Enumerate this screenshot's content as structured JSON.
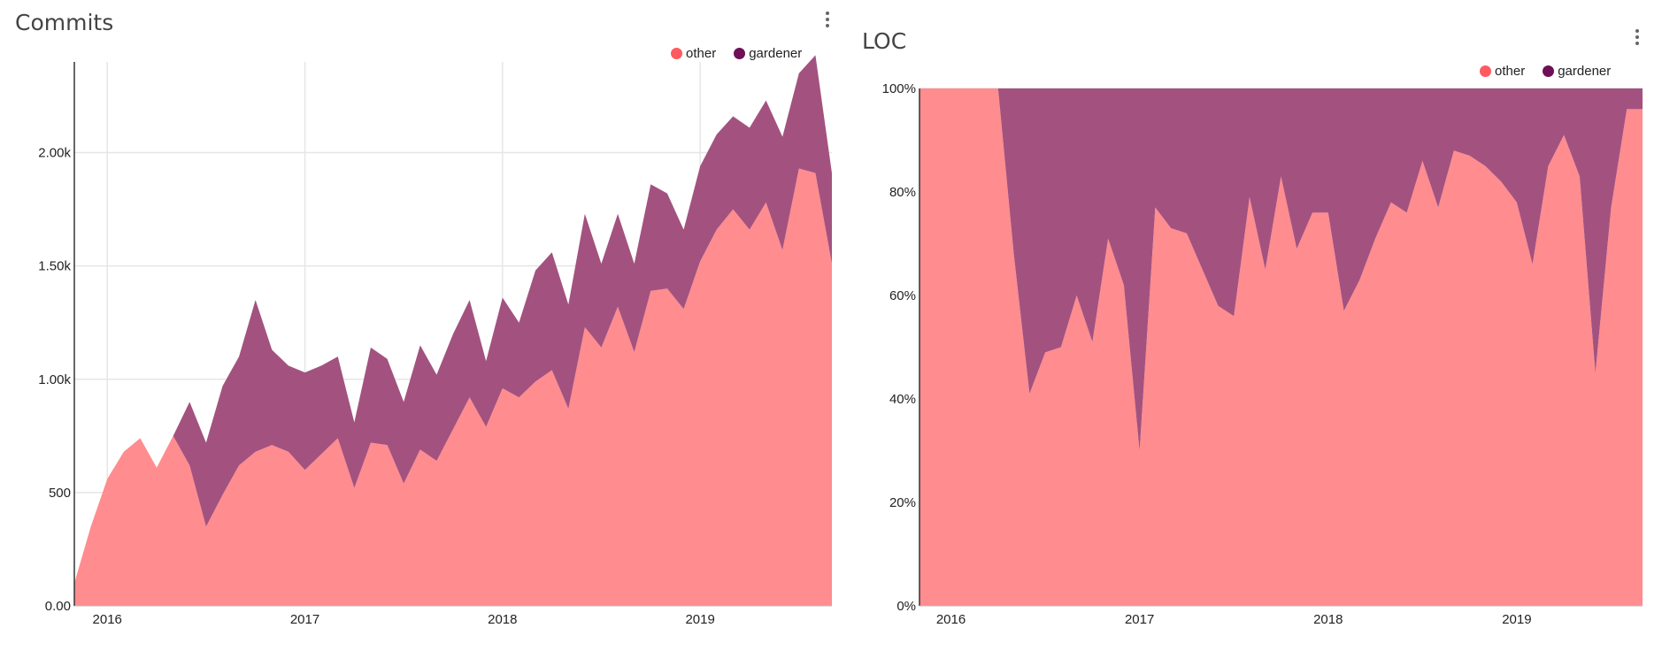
{
  "chart_data": [
    {
      "type": "area",
      "stacked": true,
      "title": "Commits",
      "xlabel": "",
      "ylabel": "",
      "x": [
        "2015-11",
        "2015-12",
        "2016-01",
        "2016-02",
        "2016-03",
        "2016-04",
        "2016-05",
        "2016-06",
        "2016-07",
        "2016-08",
        "2016-09",
        "2016-10",
        "2016-11",
        "2016-12",
        "2017-01",
        "2017-02",
        "2017-03",
        "2017-04",
        "2017-05",
        "2017-06",
        "2017-07",
        "2017-08",
        "2017-09",
        "2017-10",
        "2017-11",
        "2017-12",
        "2018-01",
        "2018-02",
        "2018-03",
        "2018-04",
        "2018-05",
        "2018-06",
        "2018-07",
        "2018-08",
        "2018-09",
        "2018-10",
        "2018-11",
        "2018-12",
        "2019-01",
        "2019-02",
        "2019-03",
        "2019-04",
        "2019-05",
        "2019-06",
        "2019-07",
        "2019-08",
        "2019-09"
      ],
      "series": [
        {
          "name": "other",
          "color": "#ff5a5f",
          "values": [
            100,
            350,
            560,
            680,
            740,
            610,
            750,
            620,
            350,
            490,
            620,
            680,
            710,
            680,
            600,
            670,
            740,
            520,
            720,
            710,
            540,
            690,
            640,
            780,
            920,
            790,
            960,
            920,
            990,
            1040,
            870,
            1230,
            1140,
            1320,
            1120,
            1390,
            1400,
            1310,
            1520,
            1660,
            1750,
            1660,
            1780,
            1570,
            1930,
            1910,
            1510
          ]
        },
        {
          "name": "gardener",
          "color": "#7a1a5f",
          "values": [
            0,
            0,
            0,
            0,
            0,
            0,
            0,
            280,
            370,
            480,
            480,
            670,
            420,
            380,
            430,
            390,
            360,
            290,
            420,
            380,
            360,
            460,
            380,
            420,
            430,
            290,
            400,
            330,
            490,
            520,
            460,
            500,
            370,
            410,
            390,
            470,
            420,
            350,
            420,
            420,
            410,
            450,
            450,
            500,
            420,
            520,
            400
          ]
        }
      ],
      "ylim": [
        0,
        2400
      ],
      "yticks": [
        "0.00",
        "500",
        "1.00k",
        "1.50k",
        "2.00k"
      ],
      "ytick_values": [
        0,
        500,
        1000,
        1500,
        2000
      ],
      "xticks": [
        "2016",
        "2017",
        "2018",
        "2019"
      ],
      "xtick_values": [
        "2016-01",
        "2017-01",
        "2018-01",
        "2019-01"
      ],
      "legend": "top-right",
      "grid": true
    },
    {
      "type": "area",
      "stacked": true,
      "normalized": true,
      "title": "LOC",
      "xlabel": "",
      "ylabel": "",
      "x": [
        "2015-11",
        "2015-12",
        "2016-01",
        "2016-02",
        "2016-03",
        "2016-04",
        "2016-05",
        "2016-06",
        "2016-07",
        "2016-08",
        "2016-09",
        "2016-10",
        "2016-11",
        "2016-12",
        "2017-01",
        "2017-02",
        "2017-03",
        "2017-04",
        "2017-05",
        "2017-06",
        "2017-07",
        "2017-08",
        "2017-09",
        "2017-10",
        "2017-11",
        "2017-12",
        "2018-01",
        "2018-02",
        "2018-03",
        "2018-04",
        "2018-05",
        "2018-06",
        "2018-07",
        "2018-08",
        "2018-09",
        "2018-10",
        "2018-11",
        "2018-12",
        "2019-01",
        "2019-02",
        "2019-03",
        "2019-04",
        "2019-05",
        "2019-06",
        "2019-07",
        "2019-08",
        "2019-09"
      ],
      "series": [
        {
          "name": "other",
          "color": "#ff5a5f",
          "values": [
            100,
            100,
            100,
            100,
            100,
            100,
            68,
            41,
            49,
            50,
            60,
            51,
            71,
            62,
            30,
            77,
            73,
            72,
            65,
            58,
            56,
            79,
            65,
            83,
            69,
            76,
            76,
            57,
            63,
            71,
            78,
            76,
            86,
            77,
            88,
            87,
            85,
            82,
            78,
            66,
            85,
            91,
            83,
            45,
            77,
            96,
            96
          ]
        },
        {
          "name": "gardener",
          "color": "#7a1a5f",
          "values": [
            0,
            0,
            0,
            0,
            0,
            0,
            32,
            59,
            51,
            50,
            40,
            49,
            29,
            38,
            70,
            23,
            27,
            28,
            35,
            42,
            44,
            21,
            35,
            17,
            31,
            24,
            24,
            43,
            37,
            29,
            22,
            24,
            14,
            23,
            12,
            13,
            15,
            18,
            22,
            34,
            15,
            9,
            17,
            55,
            23,
            4,
            4
          ]
        }
      ],
      "ylim": [
        0,
        100
      ],
      "yticks": [
        "0%",
        "20%",
        "40%",
        "60%",
        "80%",
        "100%"
      ],
      "ytick_values": [
        0,
        20,
        40,
        60,
        80,
        100
      ],
      "xticks": [
        "2016",
        "2017",
        "2018",
        "2019"
      ],
      "xtick_values": [
        "2016-01",
        "2017-01",
        "2018-01",
        "2019-01"
      ],
      "legend": "top-right",
      "grid": true
    }
  ]
}
